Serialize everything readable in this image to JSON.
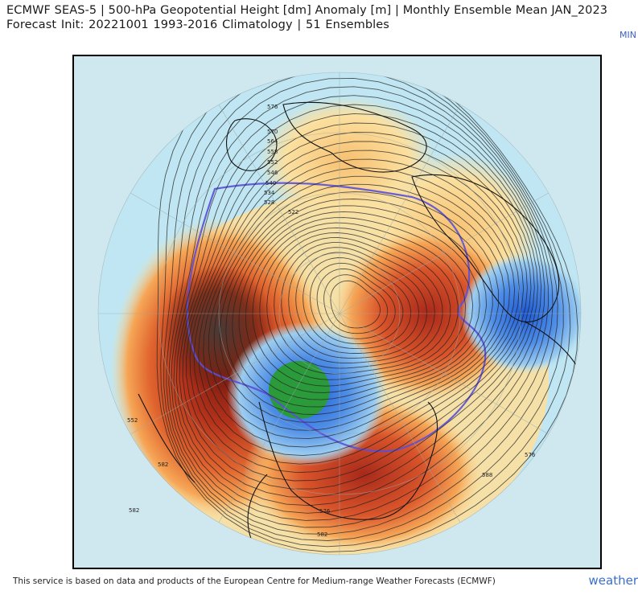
{
  "header": {
    "title": "ECMWF SEAS-5 | 500-hPa Geopotential Height [dm] Anomaly [m] | Monthly Ensemble Mean JAN_2023",
    "subtitle": "Forecast Init: 20221001     1993-2016 Climatology | 51 Ensembles",
    "min_label": "MIN"
  },
  "map": {
    "projection": "north-polar-stereographic",
    "contour_labels": [
      "576",
      "570",
      "564",
      "558",
      "552",
      "546",
      "540",
      "534",
      "528",
      "522",
      "576",
      "582",
      "588",
      "582",
      "576",
      "582",
      "552"
    ],
    "anomaly_colors": {
      "strong_positive": "#7a1a10",
      "positive": "#c8401c",
      "weak_positive": "#f29a4a",
      "slight_positive": "#fbe0a0",
      "neutral": "#e6e6e6",
      "slight_negative": "#bfe6f2",
      "negative": "#4f8ee6",
      "strong_negative": "#1e5ad6",
      "extreme_negative": "#2a9a3a",
      "zero_line": "#5a4fd8"
    }
  },
  "footer": {
    "credit": "This service is based on data and products of the European Centre for Medium-range Weather Forecasts (ECMWF)",
    "brand": "weather"
  }
}
